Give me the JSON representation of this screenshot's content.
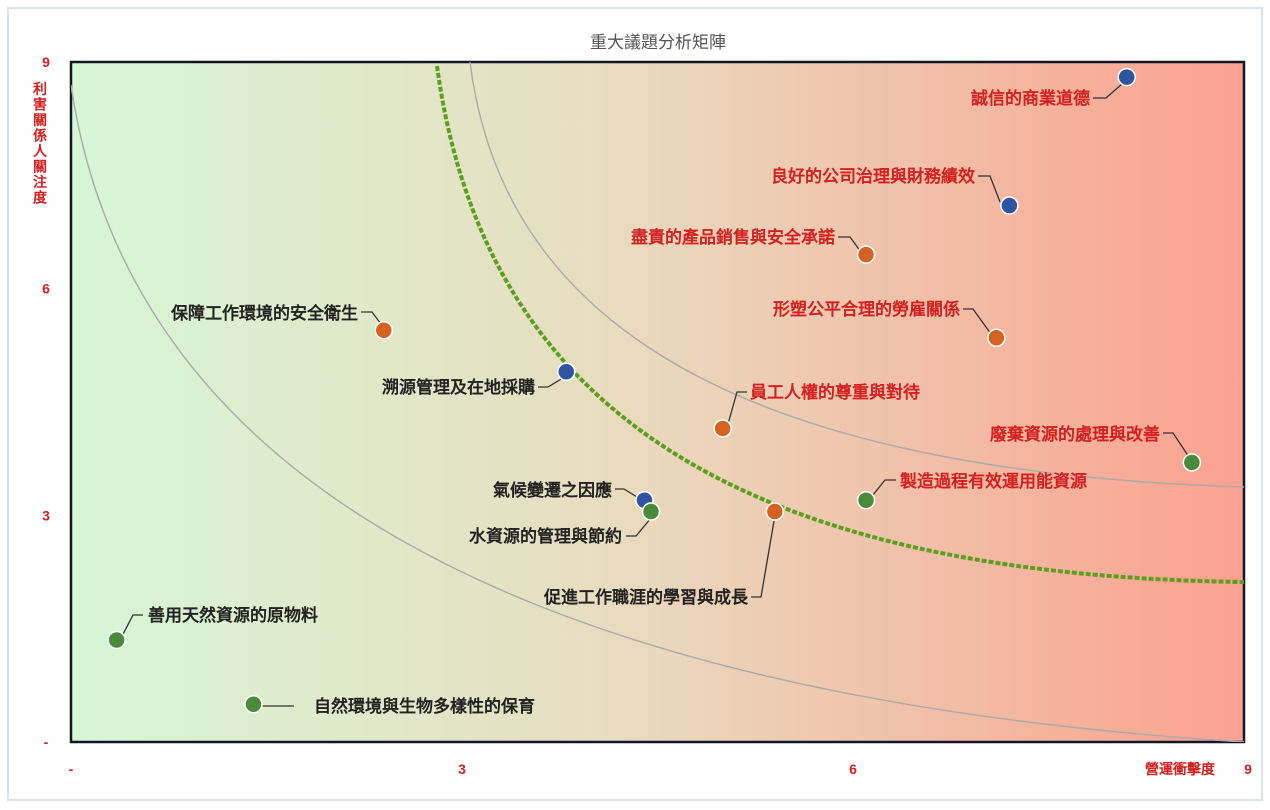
{
  "chart_data": {
    "type": "scatter",
    "title": "重大議題分析矩陣",
    "xlabel": "營運衝擊度",
    "ylabel": "利害關係人關注度",
    "xlim": [
      0,
      9
    ],
    "ylim": [
      0,
      9
    ],
    "x_ticks": [
      {
        "value": 0,
        "label": "-"
      },
      {
        "value": 3,
        "label": "3"
      },
      {
        "value": 6,
        "label": "6"
      },
      {
        "value": 9,
        "label": "9"
      }
    ],
    "y_ticks": [
      {
        "value": 0,
        "label": "-"
      },
      {
        "value": 3,
        "label": "3"
      },
      {
        "value": 6,
        "label": "6"
      },
      {
        "value": 9,
        "label": "9"
      }
    ],
    "background": "gradient from light green (left) to light red (right)",
    "colors": {
      "blue": "#2f54a0",
      "orange": "#d5621f",
      "green": "#4a8a3b",
      "label_red": "#d42020",
      "label_dark": "#222222",
      "threshold_curve": "#5c9e1e",
      "guide_curve": "#aaaaaa",
      "axis_text": "#d42020"
    },
    "points": [
      {
        "label": "誠信的商業道德",
        "x": 8.1,
        "y": 8.8,
        "color": "blue",
        "label_color": "red"
      },
      {
        "label": "良好的公司治理與財務績效",
        "x": 7.2,
        "y": 7.1,
        "color": "blue",
        "label_color": "red"
      },
      {
        "label": "盡責的產品銷售與安全承諾",
        "x": 6.1,
        "y": 6.45,
        "color": "orange",
        "label_color": "red"
      },
      {
        "label": "形塑公平合理的勞雇關係",
        "x": 7.1,
        "y": 5.35,
        "color": "orange",
        "label_color": "red"
      },
      {
        "label": "保障工作環境的安全衛生",
        "x": 2.4,
        "y": 5.45,
        "color": "orange",
        "label_color": "dark"
      },
      {
        "label": "溯源管理及在地採購",
        "x": 3.8,
        "y": 4.9,
        "color": "blue",
        "label_color": "dark"
      },
      {
        "label": "員工人權的尊重與對待",
        "x": 5.0,
        "y": 4.15,
        "color": "orange",
        "label_color": "red"
      },
      {
        "label": "廢棄資源的處理與改善",
        "x": 8.6,
        "y": 3.7,
        "color": "green",
        "label_color": "red"
      },
      {
        "label": "製造過程有效運用能資源",
        "x": 6.1,
        "y": 3.2,
        "color": "green",
        "label_color": "red"
      },
      {
        "label": "氣候變遷之因應",
        "x": 4.4,
        "y": 3.2,
        "color": "blue",
        "label_color": "dark"
      },
      {
        "label": "水資源的管理與節約",
        "x": 4.45,
        "y": 3.05,
        "color": "green",
        "label_color": "dark"
      },
      {
        "label": "促進工作職涯的學習與成長",
        "x": 5.4,
        "y": 3.05,
        "color": "orange",
        "label_color": "dark"
      },
      {
        "label": "善用天然資源的原物料",
        "x": 0.35,
        "y": 1.35,
        "color": "green",
        "label_color": "dark"
      },
      {
        "label": "自然環境與生物多樣性的保育",
        "x": 1.4,
        "y": 0.5,
        "color": "green",
        "label_color": "dark"
      }
    ],
    "grid": false,
    "legend": "none"
  }
}
